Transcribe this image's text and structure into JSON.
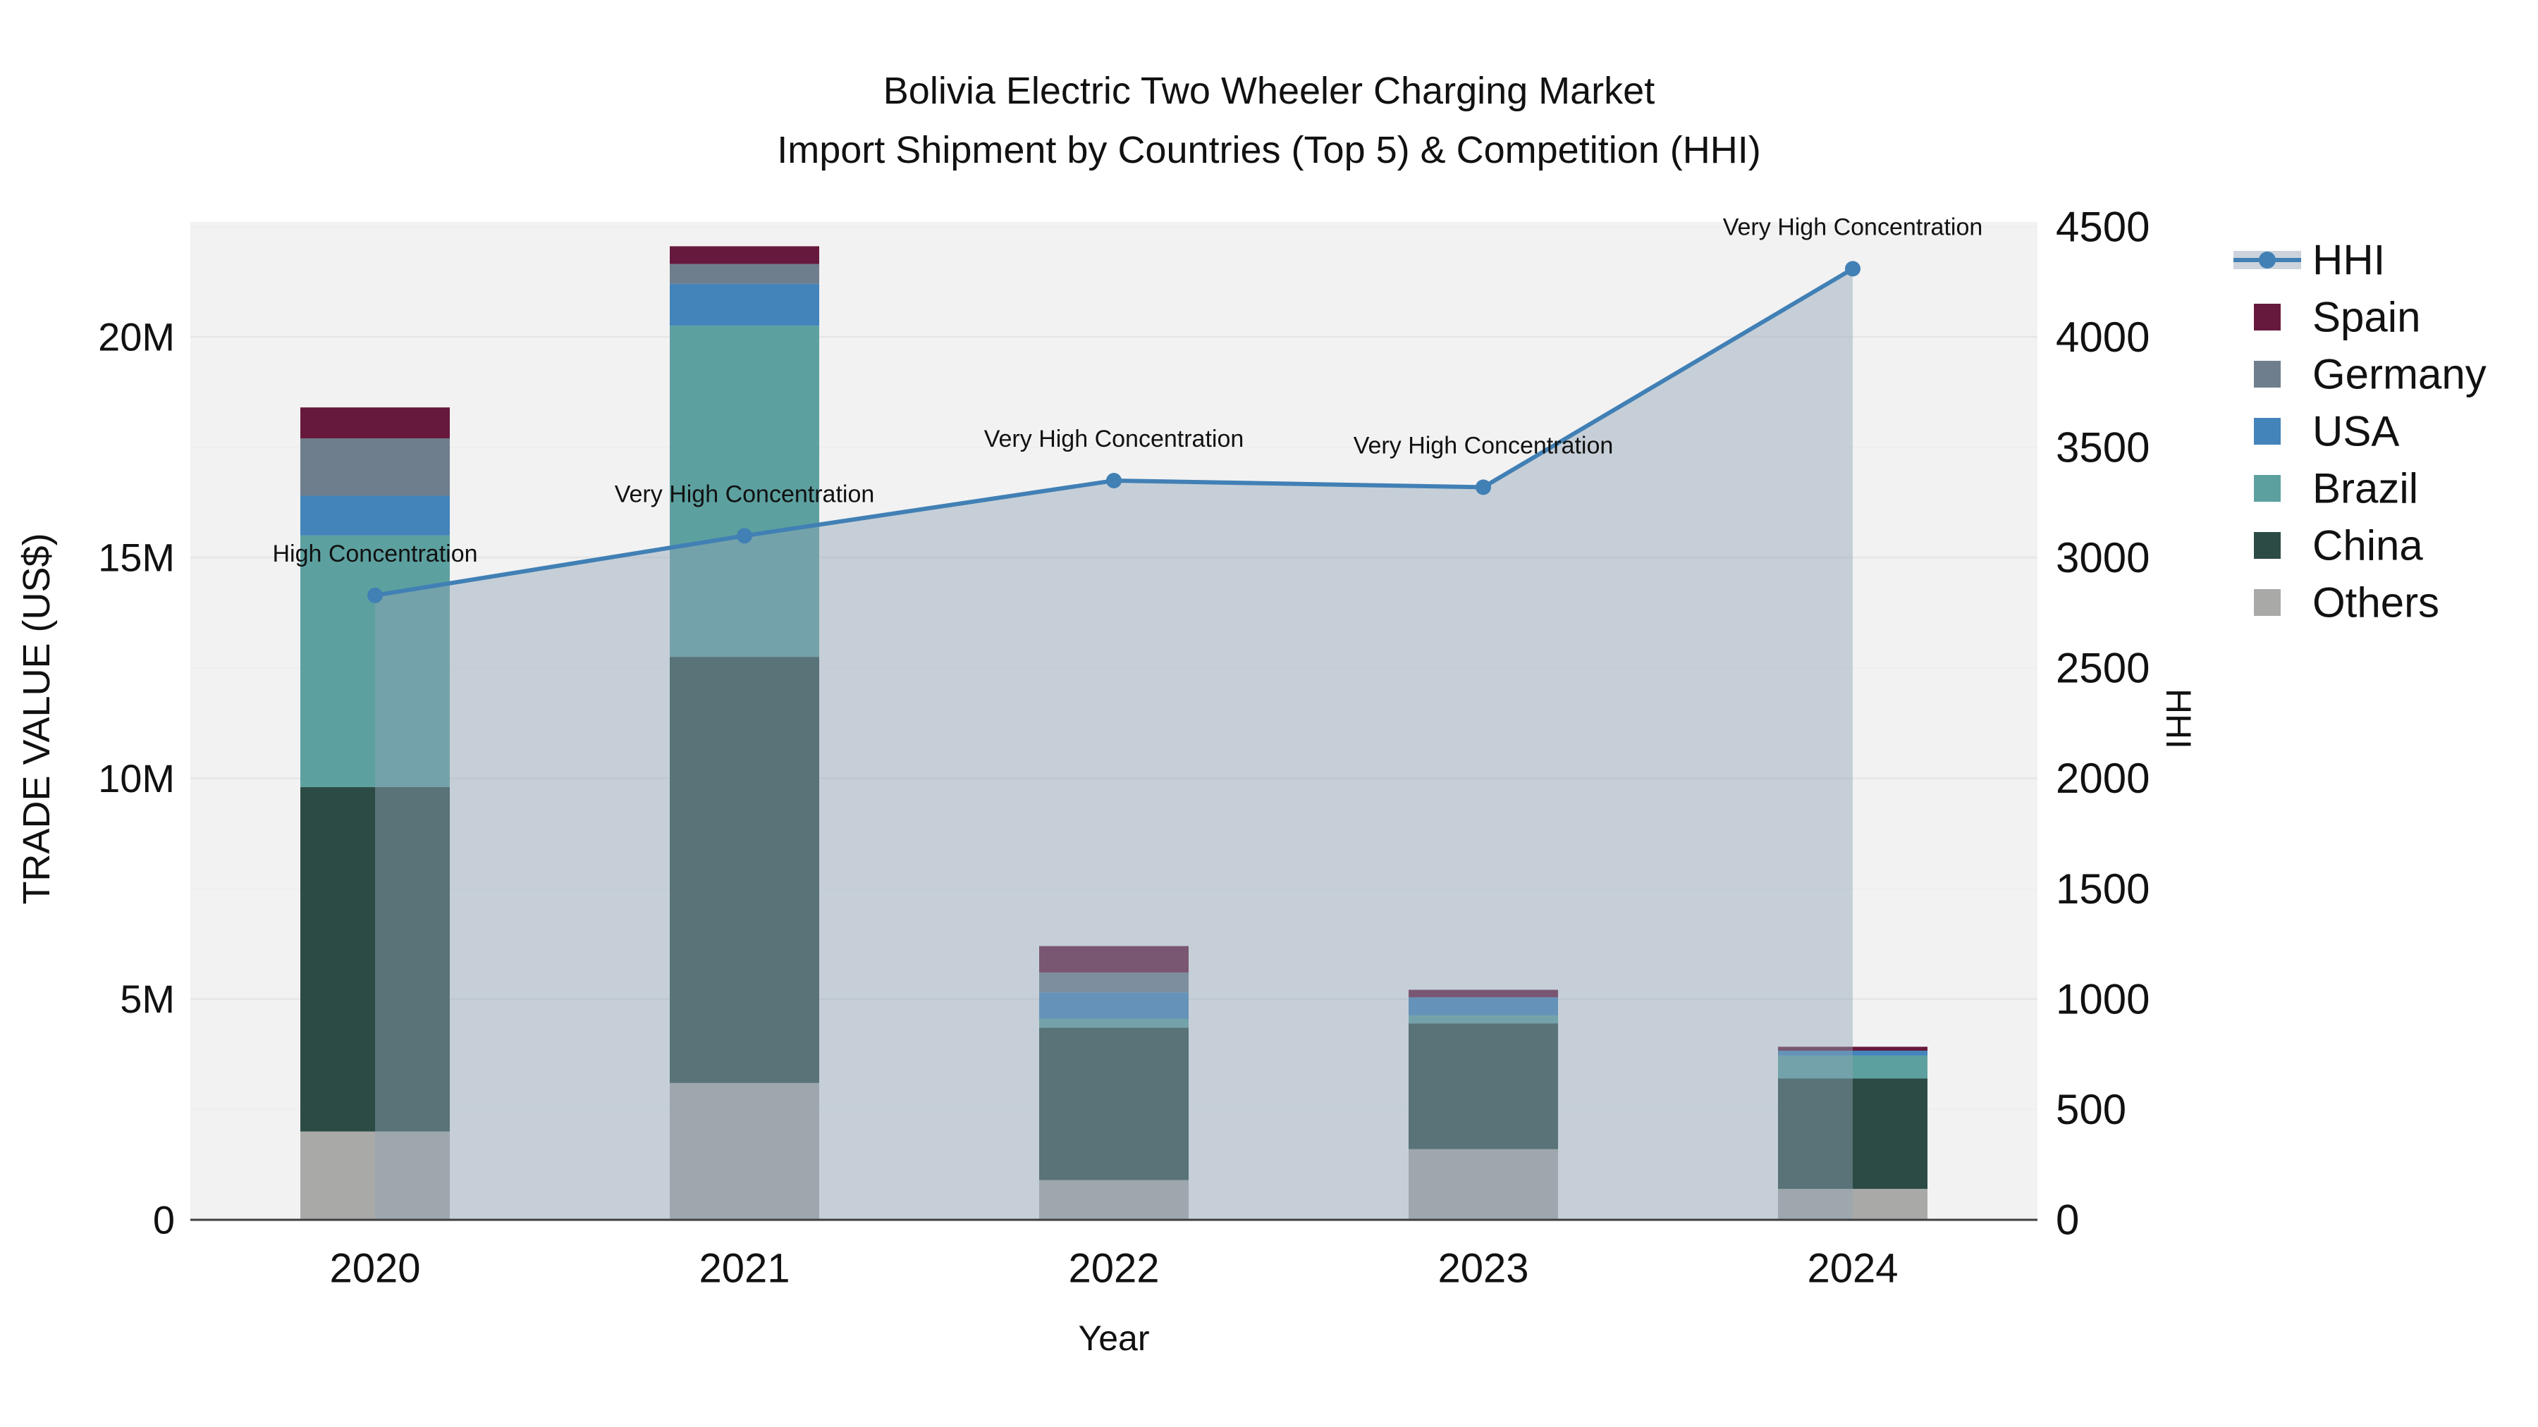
{
  "title": {
    "line1": "Bolivia Electric Two Wheeler Charging Market",
    "line2": "Import Shipment by Countries (Top 5) & Competition (HHI)"
  },
  "axes": {
    "y_left_title": "TRADE VALUE (US$)",
    "y_right_title": "HHI",
    "x_title": "Year"
  },
  "colors": {
    "plot_bg": "#f2f2f2",
    "grid_major": "#e6e6e6",
    "grid_minor": "#ededed",
    "baseline": "#3f3f3f",
    "hhi_line": "#4180b5",
    "hhi_fill": "rgba(144,163,182,0.45)",
    "text": "#111111"
  },
  "legend": [
    {
      "label": "HHI",
      "type": "line",
      "color": "#4180b5"
    },
    {
      "label": "Spain",
      "type": "square",
      "color": "#67193d"
    },
    {
      "label": "Germany",
      "type": "square",
      "color": "#6e7e8d"
    },
    {
      "label": "USA",
      "type": "square",
      "color": "#4384ba"
    },
    {
      "label": "Brazil",
      "type": "square",
      "color": "#5da0a0"
    },
    {
      "label": "China",
      "type": "square",
      "color": "#2d4b45"
    },
    {
      "label": "Others",
      "type": "square",
      "color": "#a9aaa8"
    }
  ],
  "chart_data": {
    "type": "bar+line",
    "title": "Bolivia Electric Two Wheeler Charging Market — Import Shipment by Countries (Top 5) & Competition (HHI)",
    "categories": [
      "2020",
      "2021",
      "2022",
      "2023",
      "2024"
    ],
    "bar_unit": "M US$",
    "stacked_series_bottom_to_top": [
      {
        "name": "Others",
        "color": "#a9aaa8",
        "values": [
          2.0,
          3.1,
          0.9,
          1.6,
          0.7
        ]
      },
      {
        "name": "China",
        "color": "#2d4b45",
        "values": [
          7.8,
          9.65,
          3.45,
          2.85,
          2.5
        ]
      },
      {
        "name": "Brazil",
        "color": "#5da0a0",
        "values": [
          5.7,
          7.5,
          0.2,
          0.18,
          0.52
        ]
      },
      {
        "name": "USA",
        "color": "#4384ba",
        "values": [
          0.9,
          0.95,
          0.6,
          0.41,
          0.11
        ]
      },
      {
        "name": "Germany",
        "color": "#6e7e8d",
        "values": [
          1.3,
          0.45,
          0.45,
          0,
          0
        ]
      },
      {
        "name": "Spain",
        "color": "#67193d",
        "values": [
          0.7,
          0.4,
          0.6,
          0.17,
          0.09
        ]
      }
    ],
    "line_series": {
      "name": "HHI",
      "color": "#4180b5",
      "values": [
        2830,
        3100,
        3350,
        3320,
        4310
      ],
      "area_fill": true
    },
    "annotations": [
      {
        "category_index": 0,
        "text": "High Concentration"
      },
      {
        "category_index": 1,
        "text": "Very High Concentration"
      },
      {
        "category_index": 2,
        "text": "Very High Concentration"
      },
      {
        "category_index": 3,
        "text": "Very High Concentration"
      },
      {
        "category_index": 4,
        "text": "Very High Concentration"
      }
    ],
    "y_left": {
      "label": "TRADE VALUE (US$)",
      "ticks": [
        {
          "label": "0",
          "value": 0
        },
        {
          "label": "5M",
          "value": 5
        },
        {
          "label": "10M",
          "value": 10
        },
        {
          "label": "15M",
          "value": 15
        },
        {
          "label": "20M",
          "value": 20
        }
      ],
      "range_M": [
        0,
        22.6
      ],
      "grid": true
    },
    "y_right": {
      "label": "HHI",
      "ticks": [
        {
          "label": "0",
          "value": 0
        },
        {
          "label": "500",
          "value": 500
        },
        {
          "label": "1000",
          "value": 1000
        },
        {
          "label": "1500",
          "value": 1500
        },
        {
          "label": "2000",
          "value": 2000
        },
        {
          "label": "2500",
          "value": 2500
        },
        {
          "label": "3000",
          "value": 3000
        },
        {
          "label": "3500",
          "value": 3500
        },
        {
          "label": "4000",
          "value": 4000
        },
        {
          "label": "4500",
          "value": 4500
        }
      ],
      "range": [
        0,
        4522
      ],
      "grid": true
    },
    "x": {
      "label": "Year",
      "categories": [
        "2020",
        "2021",
        "2022",
        "2023",
        "2024"
      ]
    },
    "legend_position": "right"
  }
}
